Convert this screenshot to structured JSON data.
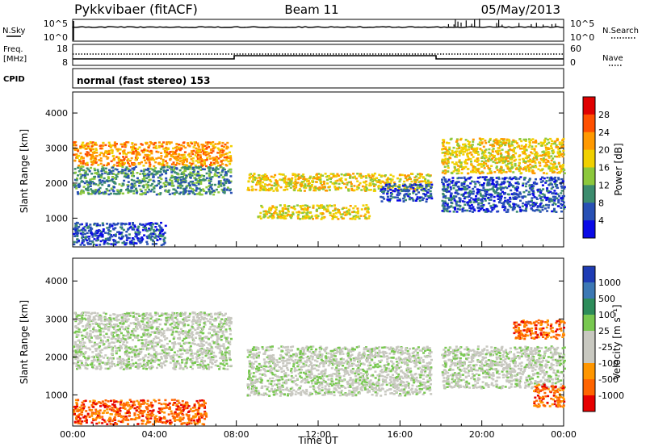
{
  "header": {
    "radar": "Pykkvibaer (fitACF)",
    "beam": "Beam 11",
    "date": "05/May/2013"
  },
  "top_panels": {
    "nsky_label": "N.Sky",
    "nsky_ticks": [
      "10^5",
      "10^0"
    ],
    "nsearch_label": "N.Search",
    "nsearch_ticks": [
      "10^5",
      "10^0"
    ],
    "freq_label": "Freq.",
    "freq_unit": "[MHz]",
    "freq_ticks": [
      "18",
      "8"
    ],
    "nave_label": "Nave",
    "nave_ticks": [
      "60",
      "0"
    ],
    "cpid_label": "CPID",
    "cpid_text": "normal (fast stereo) 153"
  },
  "chart_data": [
    {
      "type": "heatmap",
      "name": "power",
      "ylabel": "Slant Range [km]",
      "xlabel": "",
      "y_ticks": [
        "4000",
        "3000",
        "2000",
        "1000"
      ],
      "x_ticks": [],
      "xlim_hours": [
        0,
        24
      ],
      "ylim_km": [
        180,
        4600
      ],
      "colorbar_label": "Power [dB]",
      "colorbar_ticks": [
        "28",
        "24",
        "20",
        "16",
        "12",
        "8",
        "4"
      ],
      "colorbar_colors": [
        "#e00000",
        "#ff5000",
        "#ff9900",
        "#f0d000",
        "#8cc83c",
        "#3c8c6e",
        "#2850b4",
        "#0a0ae6"
      ],
      "echo_bands": [
        {
          "t0": 0,
          "t1": 7.7,
          "r_lo": 2500,
          "r_hi": 3200,
          "level": 2
        },
        {
          "t0": 0,
          "t1": 7.7,
          "r_lo": 1700,
          "r_hi": 2500,
          "level": 5
        },
        {
          "t0": 0,
          "t1": 4.5,
          "r_lo": 250,
          "r_hi": 900,
          "level": 6
        },
        {
          "t0": 8.5,
          "t1": 17.5,
          "r_lo": 1800,
          "r_hi": 2300,
          "level": 3
        },
        {
          "t0": 9.0,
          "t1": 14.5,
          "r_lo": 1000,
          "r_hi": 1400,
          "level": 3
        },
        {
          "t0": 15.0,
          "t1": 17.5,
          "r_lo": 1500,
          "r_hi": 2000,
          "level": 6
        },
        {
          "t0": 18.0,
          "t1": 24,
          "r_lo": 1200,
          "r_hi": 2200,
          "level": 6
        },
        {
          "t0": 18.0,
          "t1": 24,
          "r_lo": 2300,
          "r_hi": 3300,
          "level": 3
        }
      ]
    },
    {
      "type": "heatmap",
      "name": "velocity",
      "ylabel": "Slant Range [km]",
      "xlabel": "Time UT",
      "y_ticks": [
        "4000",
        "3000",
        "2000",
        "1000"
      ],
      "x_ticks": [
        "00:00",
        "04:00",
        "08:00",
        "12:00",
        "16:00",
        "20:00",
        "00:00"
      ],
      "xlim_hours": [
        0,
        24
      ],
      "ylim_km": [
        180,
        4600
      ],
      "colorbar_label": "Velocity [m s⁻¹]",
      "colorbar_ticks": [
        "1000",
        "500",
        "100",
        "25",
        "-25",
        "-100",
        "-500",
        "-1000"
      ],
      "colorbar_colors": [
        "#1e3cb4",
        "#3c78b4",
        "#2d8c5a",
        "#78c850",
        "#c8c8c0",
        "#c8c8c0",
        "#ff9600",
        "#ff6400",
        "#e60000"
      ],
      "echo_bands": [
        {
          "t0": 0,
          "t1": 7.7,
          "r_lo": 1700,
          "r_hi": 3200,
          "level": 4
        },
        {
          "t0": 0,
          "t1": 6.5,
          "r_lo": 250,
          "r_hi": 900,
          "level": 7
        },
        {
          "t0": 8.5,
          "t1": 17.5,
          "r_lo": 1000,
          "r_hi": 2300,
          "level": 4
        },
        {
          "t0": 18.0,
          "t1": 24,
          "r_lo": 1200,
          "r_hi": 2300,
          "level": 4
        },
        {
          "t0": 21.5,
          "t1": 24,
          "r_lo": 2500,
          "r_hi": 3000,
          "level": 7
        },
        {
          "t0": 22.5,
          "t1": 24,
          "r_lo": 700,
          "r_hi": 1300,
          "level": 7
        }
      ]
    }
  ]
}
